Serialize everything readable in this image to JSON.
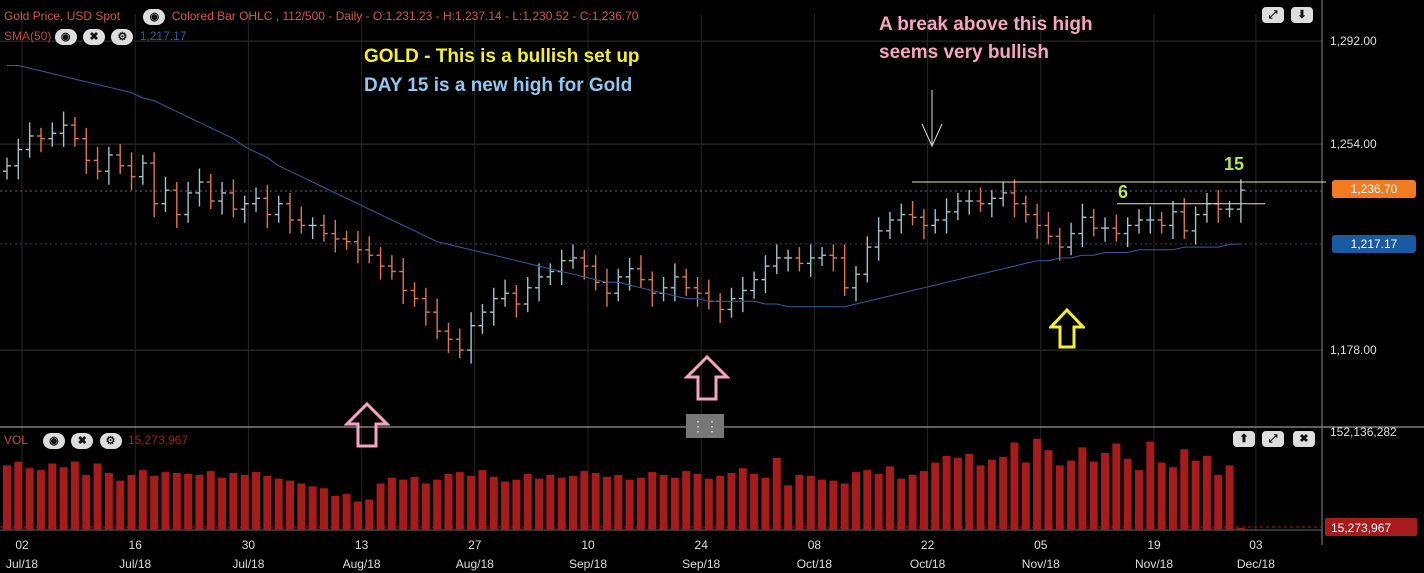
{
  "header": {
    "title": "Gold Price, USD Spot",
    "study_line": "Colored Bar OHLC , 112/500 - Daily - O:1,231.23 - H:1,237.14 - L:1,230.52 - C:1,236.70",
    "sma_label": "SMA(50)",
    "sma_value": "1,217.17",
    "vol_label": "VOL",
    "vol_value": "15,273,967"
  },
  "icons": {
    "eye": "eye-icon",
    "close": "close-icon",
    "settings": "gear-icon",
    "expand": "expand-icon",
    "collapse": "collapse-icon",
    "up": "arrow-up-icon"
  },
  "annotations": {
    "gold_setup": "GOLD -  This is a bullish set up",
    "day15": "DAY 15 is a new high for Gold",
    "break_line1": "A break above this high",
    "break_line2": "seems very bullish",
    "label_6": "6",
    "label_15": "15"
  },
  "colors": {
    "background": "#000000",
    "up_bar": "#9fc3c7",
    "down_bar": "#e0764a",
    "sma": "#2e5fa8",
    "volume": "#a61b1b",
    "last_price_tag": "#f27a21",
    "sma_tag": "#1a5aa0",
    "yellow_text": "#f4f02a",
    "blue_text": "#8ec8f2",
    "pink_text": "#f7a3c4",
    "green_label": "#b6e64b",
    "pink_arrow": "#f7a3c4",
    "yellow_arrow": "#f4f02a"
  },
  "price_tags": {
    "last": "1,236.70",
    "sma": "1,217.17"
  },
  "chart_data": {
    "type": "bar",
    "price_axis": {
      "ticks": [
        "1,292.00",
        "1,254.00",
        "1,178.00"
      ],
      "tick_values": [
        1292,
        1254,
        1178
      ],
      "ylim": [
        1150,
        1302
      ]
    },
    "volume_axis": {
      "ticks": [
        "152,136,282",
        "15,273,967"
      ],
      "tick_values": [
        152136282,
        15273967
      ],
      "ylim": [
        0,
        152136282
      ]
    },
    "x_ticks": [
      {
        "day": "02",
        "month": "Jul/18",
        "i": 0
      },
      {
        "day": "16",
        "month": "Jul/18",
        "i": 10
      },
      {
        "day": "30",
        "month": "Jul/18",
        "i": 20
      },
      {
        "day": "13",
        "month": "Aug/18",
        "i": 30
      },
      {
        "day": "27",
        "month": "Aug/18",
        "i": 40
      },
      {
        "day": "10",
        "month": "Sep/18",
        "i": 50
      },
      {
        "day": "24",
        "month": "Sep/18",
        "i": 60
      },
      {
        "day": "08",
        "month": "Oct/18",
        "i": 70
      },
      {
        "day": "22",
        "month": "Oct/18",
        "i": 80
      },
      {
        "day": "05",
        "month": "Nov/18",
        "i": 90
      },
      {
        "day": "19",
        "month": "Nov/18",
        "i": 100
      },
      {
        "day": "03",
        "month": "Dec/18",
        "i": 109
      }
    ],
    "close": [
      1246,
      1252,
      1257,
      1256,
      1258,
      1261,
      1256,
      1248,
      1244,
      1250,
      1246,
      1242,
      1247,
      1232,
      1237,
      1228,
      1236,
      1240,
      1233,
      1236,
      1230,
      1232,
      1234,
      1228,
      1232,
      1226,
      1224,
      1224,
      1221,
      1219,
      1218,
      1215,
      1213,
      1209,
      1207,
      1200,
      1197,
      1192,
      1185,
      1182,
      1178,
      1187,
      1192,
      1197,
      1199,
      1195,
      1201,
      1205,
      1207,
      1211,
      1212,
      1209,
      1203,
      1199,
      1205,
      1208,
      1204,
      1199,
      1201,
      1205,
      1201,
      1199,
      1196,
      1193,
      1197,
      1200,
      1204,
      1209,
      1212,
      1212,
      1210,
      1212,
      1213,
      1212,
      1201,
      1206,
      1216,
      1222,
      1226,
      1228,
      1227,
      1224,
      1226,
      1229,
      1233,
      1233,
      1232,
      1234,
      1236,
      1232,
      1228,
      1224,
      1220,
      1216,
      1221,
      1227,
      1223,
      1223,
      1221,
      1224,
      1226,
      1226,
      1224,
      1229,
      1222,
      1228,
      1232,
      1230,
      1230,
      1237
    ],
    "sma": [
      1283,
      1283,
      1282,
      1281,
      1280,
      1279,
      1278,
      1277,
      1276,
      1275,
      1274,
      1273,
      1271,
      1270,
      1268,
      1266,
      1264,
      1262,
      1260,
      1258,
      1256,
      1253,
      1251,
      1249,
      1246,
      1244,
      1242,
      1240,
      1238,
      1236,
      1234,
      1232,
      1230,
      1228,
      1226,
      1224,
      1222,
      1220,
      1218,
      1217,
      1216,
      1215,
      1214,
      1213,
      1212,
      1211,
      1210,
      1209,
      1208,
      1207,
      1206,
      1205,
      1204,
      1203,
      1203,
      1202,
      1201,
      1200,
      1199,
      1198,
      1197,
      1197,
      1196,
      1196,
      1196,
      1196,
      1196,
      1195,
      1195,
      1194,
      1194,
      1194,
      1194,
      1194,
      1194,
      1195,
      1196,
      1197,
      1198,
      1199,
      1200,
      1201,
      1202,
      1203,
      1204,
      1205,
      1206,
      1207,
      1208,
      1209,
      1210,
      1211,
      1211,
      1212,
      1212,
      1213,
      1213,
      1214,
      1214,
      1214,
      1215,
      1215,
      1215,
      1215,
      1216,
      1216,
      1216,
      1216,
      1217,
      1217.17
    ],
    "volume": [
      68,
      72,
      65,
      63,
      70,
      66,
      72,
      58,
      70,
      60,
      52,
      58,
      63,
      57,
      61,
      60,
      59,
      58,
      62,
      55,
      60,
      58,
      61,
      57,
      54,
      52,
      49,
      46,
      44,
      36,
      38,
      30,
      32,
      49,
      55,
      53,
      56,
      49,
      53,
      59,
      61,
      57,
      63,
      56,
      51,
      53,
      59,
      54,
      58,
      55,
      57,
      62,
      60,
      56,
      58,
      53,
      55,
      61,
      58,
      55,
      62,
      59,
      54,
      57,
      60,
      65,
      59,
      55,
      76,
      47,
      58,
      57,
      53,
      52,
      49,
      61,
      63,
      59,
      67,
      54,
      58,
      62,
      71,
      78,
      76,
      80,
      68,
      74,
      77,
      92,
      71,
      96,
      84,
      68,
      73,
      87,
      72,
      81,
      91,
      75,
      63,
      93,
      71,
      66,
      85,
      73,
      78,
      58,
      68,
      2
    ],
    "annotation_levels": {
      "high_line": 1240,
      "six_line": 1232
    }
  }
}
